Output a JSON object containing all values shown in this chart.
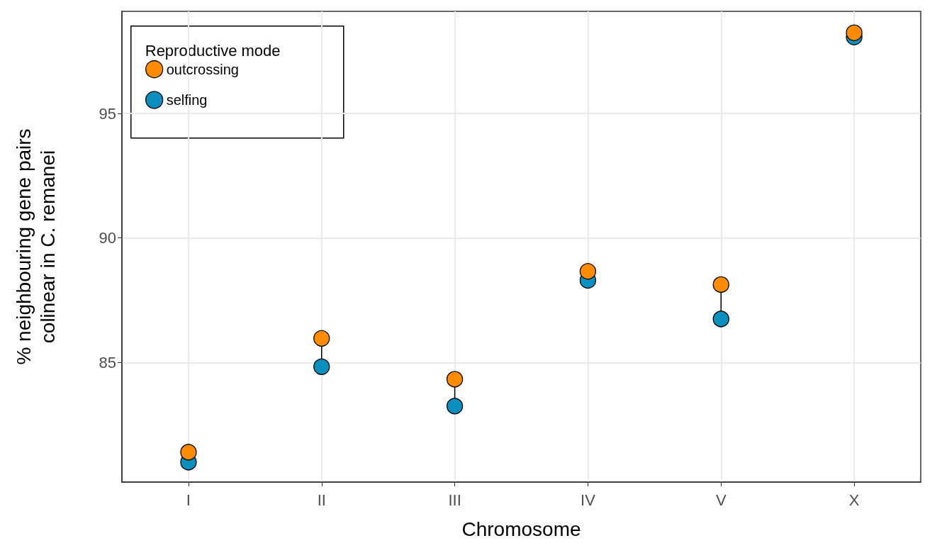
{
  "chart_data": {
    "type": "scatter",
    "xlabel": "Chromosome",
    "ylabel": "% neighbouring gene pairs\ncolinear in C. remanei",
    "legend_title": "Reproductive mode",
    "categories": [
      "I",
      "II",
      "III",
      "IV",
      "V",
      "X"
    ],
    "series": [
      {
        "name": "outcrossing",
        "color": "#ff8c00",
        "values": [
          81.4,
          85.97,
          84.33,
          88.66,
          88.13,
          98.24
        ]
      },
      {
        "name": "selfing",
        "color": "#0a8fbf",
        "values": [
          81.0,
          84.83,
          83.25,
          88.3,
          86.75,
          98.07
        ]
      }
    ],
    "ylim": [
      80.2,
      99.1
    ],
    "yticks": [
      85,
      90,
      95
    ],
    "grid": true,
    "legend": "top left",
    "marker": "circle"
  }
}
